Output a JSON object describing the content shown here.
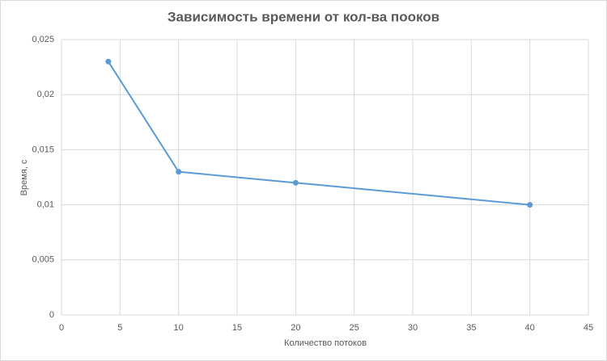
{
  "chart_data": {
    "type": "line",
    "title": "Зависимость времени от кол-ва пooков",
    "x_label": "Количество потоков",
    "y_label": "Время, с",
    "x": [
      4,
      10,
      20,
      40
    ],
    "values": [
      0.023,
      0.013,
      0.012,
      0.01
    ],
    "color": "#5b9bd5",
    "xlim": [
      0,
      45
    ],
    "xticks": [
      0,
      5,
      10,
      15,
      20,
      25,
      30,
      35,
      40,
      45
    ],
    "ylim": [
      0,
      0.025
    ],
    "yticks": [
      0,
      {
        "value": 0.005,
        "label": "0,005"
      },
      {
        "value": 0.01,
        "label": "0,01"
      },
      {
        "value": 0.015,
        "label": "0,015"
      },
      {
        "value": 0.02,
        "label": "0,02"
      },
      {
        "value": 0.025,
        "label": "0,025"
      }
    ],
    "grid": true
  }
}
